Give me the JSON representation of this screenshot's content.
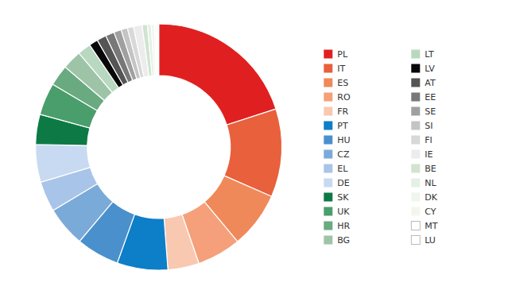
{
  "chart_data": {
    "type": "donut",
    "categories": [
      "PL",
      "IT",
      "ES",
      "RO",
      "FR",
      "PT",
      "HU",
      "CZ",
      "EL",
      "DE",
      "SK",
      "UK",
      "HR",
      "BG",
      "LT",
      "LV",
      "AT",
      "EE",
      "SE",
      "SI",
      "FI",
      "IE",
      "BE",
      "NL",
      "DK",
      "CY",
      "MT",
      "LU"
    ],
    "values": [
      77.6,
      44.9,
      28.6,
      22.4,
      15.9,
      25.8,
      21.9,
      20.5,
      15.5,
      19.2,
      15.3,
      16.4,
      10.7,
      9.8,
      6.8,
      4.5,
      4.8,
      4.4,
      3.8,
      3.3,
      3.1,
      4.4,
      2.7,
      1.9,
      1.5,
      0.9,
      0.9,
      0.5
    ],
    "colors": [
      "#e02020",
      "#e8603c",
      "#f0895a",
      "#f5a07a",
      "#f9c8b0",
      "#0d7ec8",
      "#4a90cc",
      "#7aaad8",
      "#a8c4e8",
      "#c8daf2",
      "#0d7a45",
      "#4a9e6b",
      "#6aaa80",
      "#9ec4a8",
      "#b8d8c0",
      "#080808",
      "#555555",
      "#787878",
      "#a0a0a0",
      "#c4c4c4",
      "#d8d8d8",
      "#ececec",
      "#d0e4d0",
      "#e4f0e4",
      "#f0f5f0",
      "#f5f5f0",
      "#ffffff",
      "#ffffff"
    ],
    "legend": "right"
  }
}
